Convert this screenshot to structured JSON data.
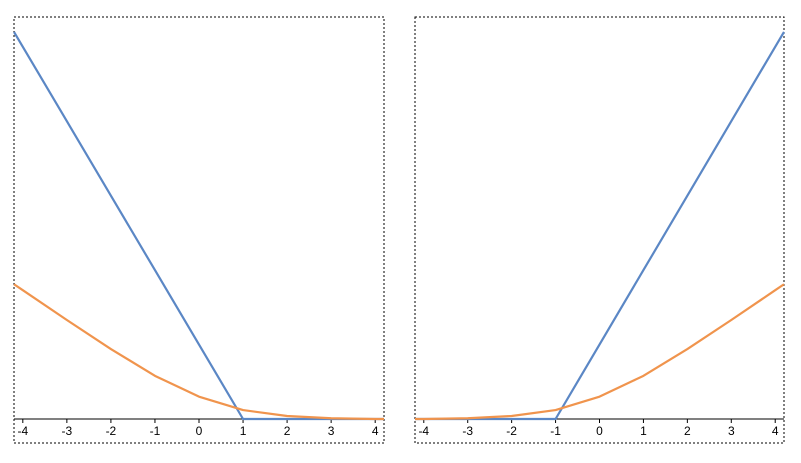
{
  "chart_data": [
    {
      "type": "line",
      "x": [
        -4.2,
        -4,
        -3,
        -2,
        -1,
        0,
        1,
        2,
        3,
        4,
        4.2
      ],
      "series": [
        {
          "color": "#5b87c5",
          "values": [
            5.2,
            5,
            4,
            3,
            2,
            1,
            0,
            0,
            0,
            0,
            0
          ]
        },
        {
          "color": "#f0944d",
          "values": [
            1.81,
            1.73,
            1.33,
            0.94,
            0.58,
            0.3,
            0.12,
            0.04,
            0.01,
            0,
            0
          ]
        }
      ],
      "xlim": [
        -4.2,
        4.2
      ],
      "ylim": [
        0,
        5.4
      ],
      "xticks": [
        -4,
        -3,
        -2,
        -1,
        0,
        1,
        2,
        3,
        4
      ]
    },
    {
      "type": "line",
      "x": [
        -4.2,
        -4,
        -3,
        -2,
        -1,
        0,
        1,
        2,
        3,
        4,
        4.2
      ],
      "series": [
        {
          "color": "#5b87c5",
          "values": [
            0,
            0,
            0,
            0,
            0,
            1,
            2,
            3,
            4,
            5,
            5.2
          ]
        },
        {
          "color": "#f0944d",
          "values": [
            0,
            0,
            0.01,
            0.04,
            0.12,
            0.3,
            0.58,
            0.94,
            1.33,
            1.73,
            1.81
          ]
        }
      ],
      "xlim": [
        -4.2,
        4.2
      ],
      "ylim": [
        0,
        5.4
      ],
      "xticks": [
        -4,
        -3,
        -2,
        -1,
        0,
        1,
        2,
        3,
        4
      ]
    }
  ]
}
